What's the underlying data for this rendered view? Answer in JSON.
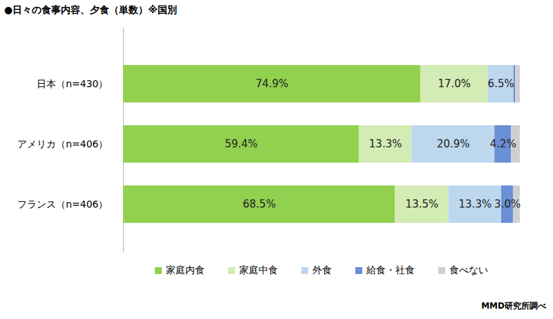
{
  "chart_data": {
    "type": "bar",
    "orientation": "horizontal",
    "stacked": true,
    "data_labels": true,
    "tick_labels": "y",
    "title": "●日々の食事内容、夕食（単数）※国別",
    "caption": "MMD研究所調べ",
    "legend": "bottom",
    "categories": [
      "日本（n=430）",
      "アメリカ（n=406）",
      "フランス（n=406）"
    ],
    "xlim": [
      0,
      100
    ],
    "series": [
      {
        "name": "家庭内食",
        "color": "#92d050",
        "values": [
          74.9,
          59.4,
          68.5
        ],
        "value_labels": [
          "74.9%",
          "59.4%",
          "68.5%"
        ]
      },
      {
        "name": "家庭中食",
        "color": "#d3ebb4",
        "values": [
          17.0,
          13.3,
          13.5
        ],
        "value_labels": [
          "17.0%",
          "13.3%",
          "13.5%"
        ]
      },
      {
        "name": "外食",
        "color": "#bdd7ee",
        "values": [
          6.5,
          20.9,
          13.3
        ],
        "value_labels": [
          "6.5%",
          "20.9%",
          "13.3%"
        ]
      },
      {
        "name": "給食・社食",
        "color": "#6a8fd6",
        "values": [
          0.4,
          4.2,
          3.0
        ],
        "value_labels": [
          null,
          "4.2%",
          "3.0%"
        ]
      },
      {
        "name": "食べない",
        "color": "#d0d0d0",
        "values": [
          1.2,
          2.2,
          1.7
        ],
        "value_labels": [
          null,
          null,
          null
        ]
      }
    ]
  }
}
